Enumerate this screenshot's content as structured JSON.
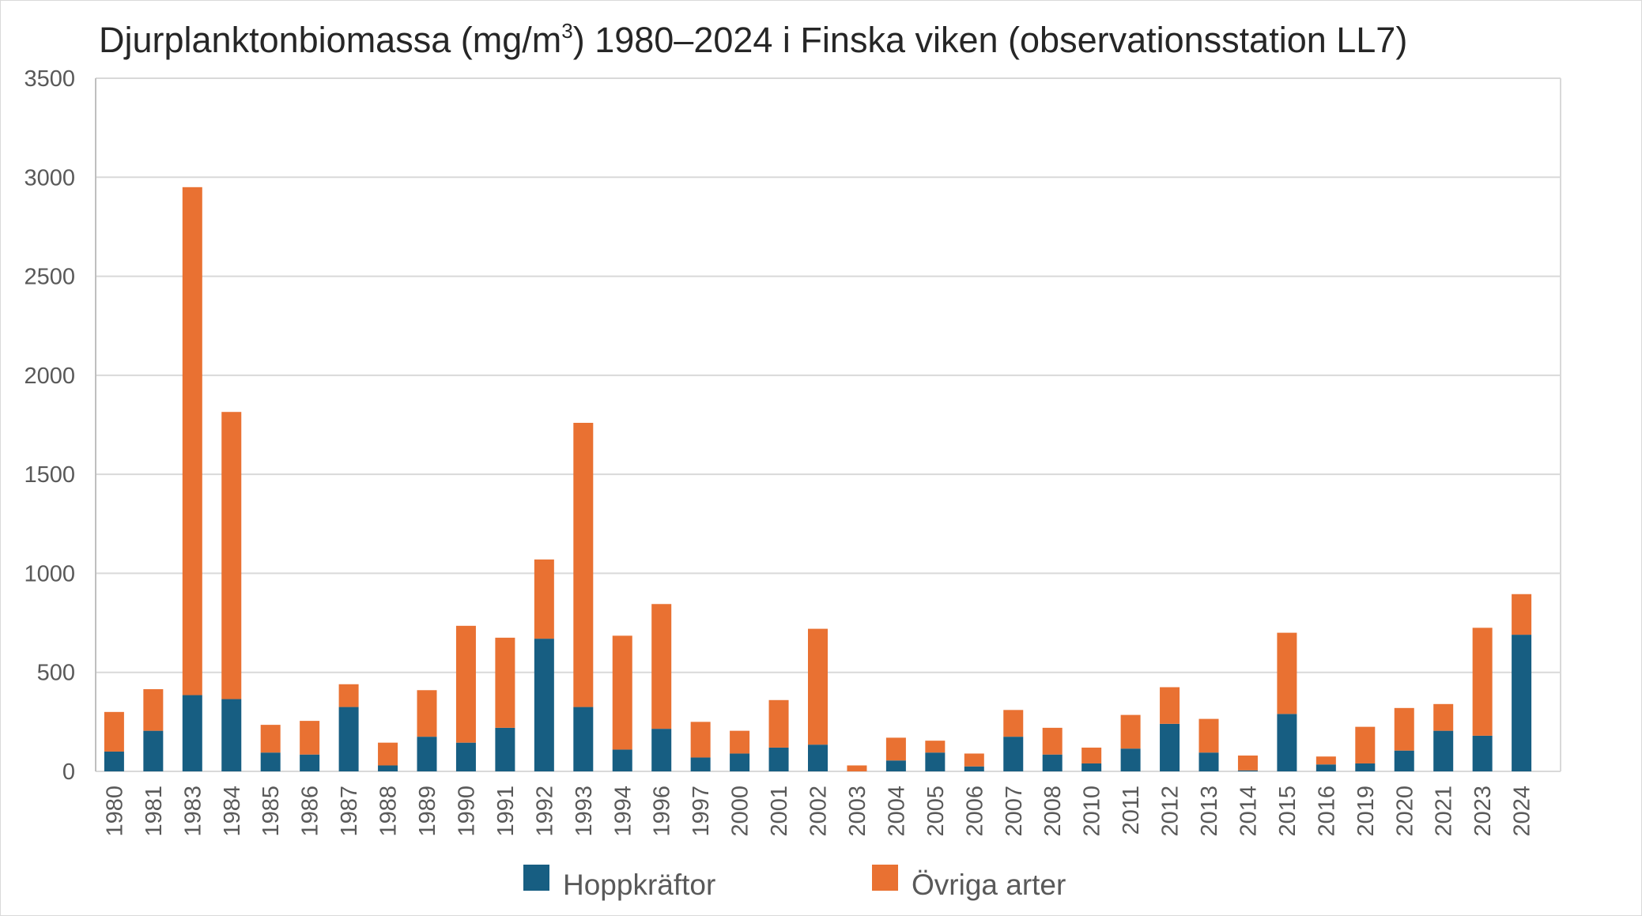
{
  "chart_data": {
    "type": "bar",
    "stacked": true,
    "title": "Djurplanktonbiomassa (mg/m",
    "title_sup": "3",
    "title_rest": ") 1980–2024 i Finska viken (observationsstation LL7)",
    "xlabel": "",
    "ylabel": "",
    "ylim": [
      0,
      3500
    ],
    "yticks": [
      0,
      500,
      1000,
      1500,
      2000,
      2500,
      3000,
      3500
    ],
    "grid": true,
    "legend_position": "bottom",
    "categories": [
      "1980",
      "1981",
      "1983",
      "1984",
      "1985",
      "1986",
      "1987",
      "1988",
      "1989",
      "1990",
      "1991",
      "1992",
      "1993",
      "1994",
      "1996",
      "1997",
      "2000",
      "2001",
      "2002",
      "2003",
      "2004",
      "2005",
      "2006",
      "2007",
      "2008",
      "2010",
      "2011",
      "2012",
      "2013",
      "2014",
      "2015",
      "2016",
      "2019",
      "2020",
      "2021",
      "2023",
      "2024"
    ],
    "series": [
      {
        "name": "Hoppkräftor",
        "color": "#175e82",
        "values": [
          100,
          205,
          385,
          365,
          95,
          85,
          325,
          30,
          175,
          145,
          220,
          670,
          325,
          110,
          215,
          70,
          90,
          120,
          135,
          0,
          55,
          95,
          25,
          175,
          85,
          40,
          115,
          240,
          95,
          5,
          290,
          35,
          40,
          105,
          205,
          180,
          690
        ]
      },
      {
        "name": "Övriga arter",
        "color": "#e97132",
        "values": [
          200,
          210,
          2565,
          1450,
          140,
          170,
          115,
          115,
          235,
          590,
          455,
          400,
          1435,
          575,
          630,
          180,
          115,
          240,
          585,
          30,
          115,
          60,
          65,
          135,
          135,
          80,
          170,
          185,
          170,
          75,
          410,
          40,
          185,
          215,
          135,
          545,
          205
        ]
      }
    ]
  }
}
